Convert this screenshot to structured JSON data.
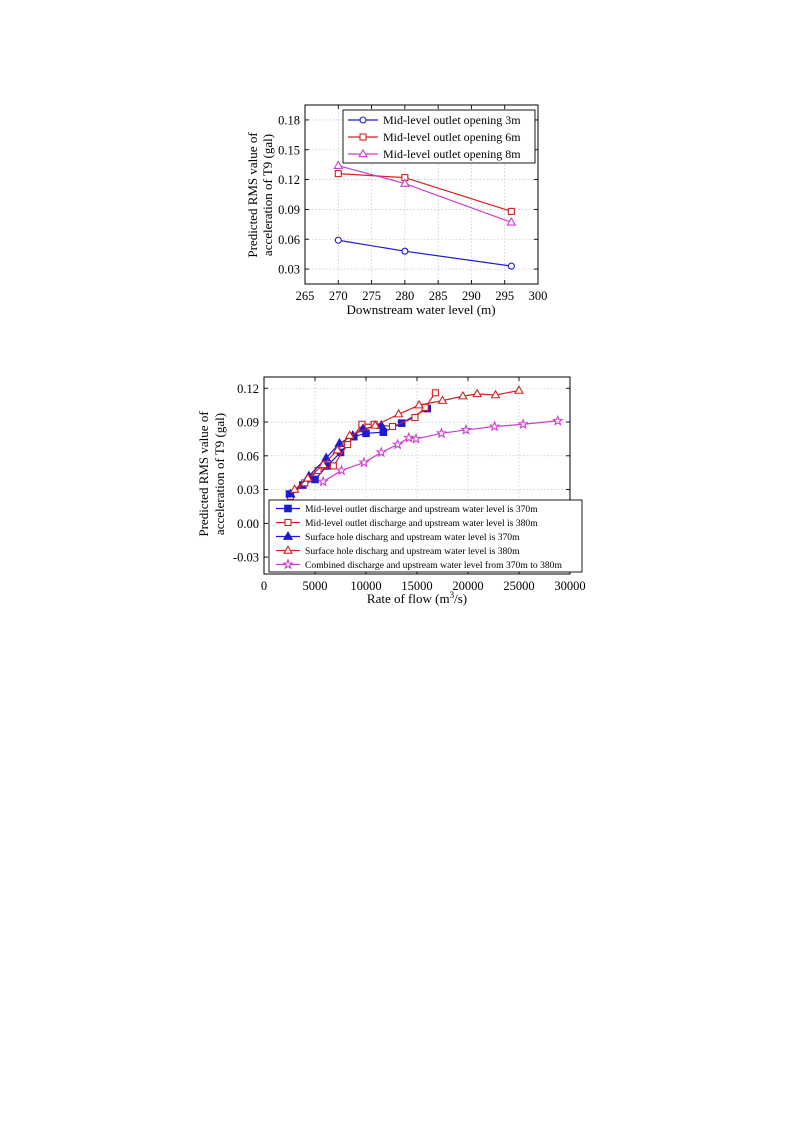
{
  "chart_data": [
    {
      "type": "line",
      "title": "",
      "xlabel": "Downstream water level (m)",
      "ylabel_lines": [
        "Predicted RMS value of",
        "acceleration of T9 (gal)"
      ],
      "xlim": [
        265,
        300
      ],
      "ylim": [
        0.015,
        0.195
      ],
      "xticks": [
        265,
        270,
        275,
        280,
        285,
        290,
        295,
        300
      ],
      "xtick_labels": [
        "265",
        "270",
        "275",
        "280",
        "285",
        "290",
        "295",
        "300"
      ],
      "yticks": [
        0.03,
        0.06,
        0.09,
        0.12,
        0.15,
        0.18
      ],
      "ytick_labels": [
        "0.03",
        "0.06",
        "0.09",
        "0.12",
        "0.15",
        "0.18"
      ],
      "grid": true,
      "legend_position": "top-right",
      "series": [
        {
          "name": "Mid-level outlet opening 3m",
          "color": "#1a1ad8",
          "marker": "circle-open",
          "x": [
            270,
            280,
            296
          ],
          "y": [
            0.059,
            0.048,
            0.033
          ]
        },
        {
          "name": "Mid-level outlet opening 6m",
          "color": "#d42020",
          "marker": "square-open",
          "x": [
            270,
            280,
            296
          ],
          "y": [
            0.126,
            0.122,
            0.088
          ]
        },
        {
          "name": "Mid-level outlet opening 8m",
          "color": "#d23ad2",
          "marker": "triangle-open",
          "x": [
            270,
            280,
            296
          ],
          "y": [
            0.134,
            0.116,
            0.077
          ]
        }
      ]
    },
    {
      "type": "line",
      "title": "",
      "xlabel": "Rate of flow (m",
      "xlabel_sup": "3",
      "xlabel_tail": "/s)",
      "ylabel_lines": [
        "Predicted RMS value of",
        "acceleration of T9 (gal)"
      ],
      "xlim": [
        0,
        30000
      ],
      "ylim": [
        -0.045,
        0.13
      ],
      "xticks": [
        0,
        5000,
        10000,
        15000,
        20000,
        25000,
        30000
      ],
      "xtick_labels": [
        "0",
        "5000",
        "10000",
        "15000",
        "20000",
        "25000",
        "30000"
      ],
      "yticks": [
        -0.03,
        0.0,
        0.03,
        0.06,
        0.09,
        0.12
      ],
      "ytick_labels": [
        "-0.03",
        "0.00",
        "0.03",
        "0.06",
        "0.09",
        "0.12"
      ],
      "grid": true,
      "legend_position": "bottom-left",
      "series": [
        {
          "name": "Mid-level outlet discharge and upstream water level is 370m",
          "color": "#1a1ad8",
          "marker": "square-filled",
          "x": [
            2500,
            3800,
            5000,
            6200,
            7500,
            8800,
            10000,
            11700,
            13500,
            16000
          ],
          "y": [
            0.026,
            0.034,
            0.039,
            0.051,
            0.063,
            0.077,
            0.08,
            0.081,
            0.089,
            0.102
          ]
        },
        {
          "name": "Mid-level outlet discharge and upstream water level is 380m",
          "color": "#d42020",
          "marker": "square-open",
          "x": [
            2600,
            4000,
            5300,
            6800,
            8200,
            9600,
            10800,
            12600,
            14800,
            15800,
            16800
          ],
          "y": [
            0.024,
            0.036,
            0.047,
            0.051,
            0.07,
            0.088,
            0.088,
            0.086,
            0.094,
            0.103,
            0.116
          ]
        },
        {
          "name": "Surface hole discharg and upstream water level is 370m",
          "color": "#1a1ad8",
          "marker": "triangle-filled",
          "x": [
            2600,
            4400,
            6100,
            7400,
            8700,
            9700,
            11500
          ],
          "y": [
            0.026,
            0.042,
            0.058,
            0.071,
            0.078,
            0.084,
            0.087
          ]
        },
        {
          "name": "Surface hole discharg and upstream water level is 380m",
          "color": "#d42020",
          "marker": "triangle-open",
          "x": [
            3000,
            4300,
            5800,
            7200,
            8400,
            10900,
            13200,
            15200,
            17500,
            19500,
            20900,
            22700,
            25000
          ],
          "y": [
            0.03,
            0.04,
            0.052,
            0.065,
            0.078,
            0.087,
            0.097,
            0.105,
            0.109,
            0.113,
            0.115,
            0.114,
            0.118
          ]
        },
        {
          "name": "Combined discharge and upstream water level from 370m to 380m",
          "color": "#d23ad2",
          "marker": "star-open",
          "x": [
            5800,
            7600,
            9800,
            11500,
            13100,
            14200,
            14900,
            17400,
            19800,
            22600,
            25400,
            28800
          ],
          "y": [
            0.037,
            0.047,
            0.054,
            0.063,
            0.07,
            0.076,
            0.075,
            0.08,
            0.083,
            0.086,
            0.088,
            0.091
          ]
        }
      ]
    }
  ]
}
